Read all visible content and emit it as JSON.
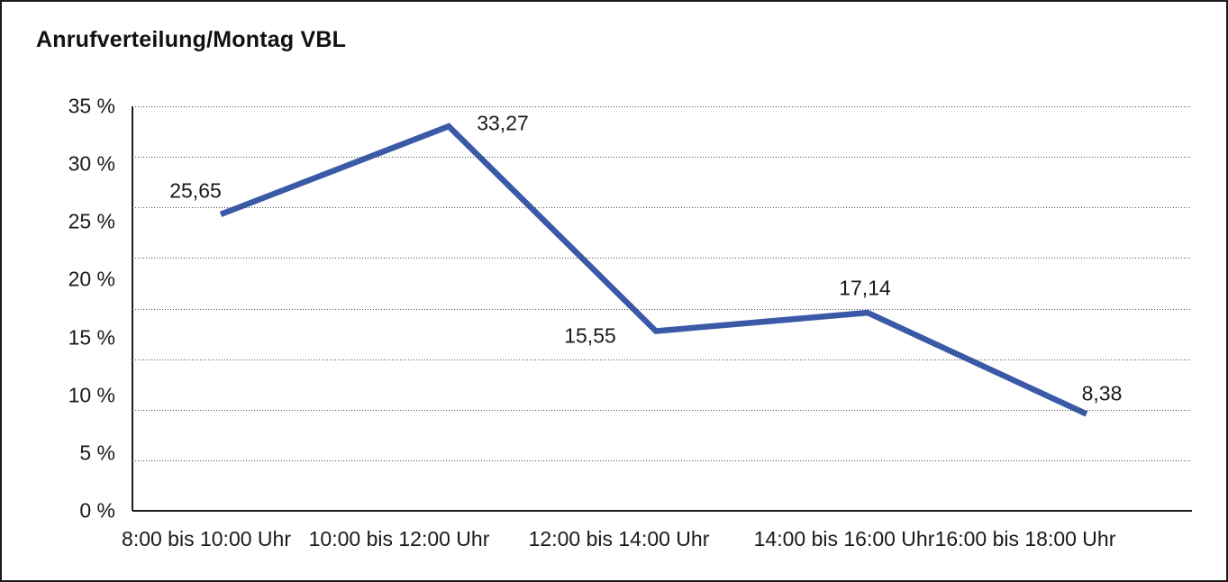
{
  "title": "Anrufverteilung/Montag VBL",
  "colors": {
    "series_line": "#3A59A6",
    "axis": "#1c1c1c",
    "gridline": "#4d4d4d",
    "text": "#1a1a1a",
    "background": "#ffffff"
  },
  "chart_data": {
    "type": "line",
    "title": "Anrufverteilung/Montag VBL",
    "categories": [
      "8:00 bis 10:00 Uhr",
      "10:00 bis 12:00 Uhr",
      "12:00 bis 14:00 Uhr",
      "14:00 bis 16:00 Uhr",
      "16:00 bis 18:00 Uhr"
    ],
    "series": [
      {
        "name": "Anrufverteilung Montag VBL",
        "values": [
          25.65,
          33.27,
          15.55,
          17.14,
          8.38
        ],
        "value_labels": [
          "25,65",
          "33,27",
          "15,55",
          "17,14",
          "8,38"
        ]
      }
    ],
    "xlabel": "",
    "ylabel": "",
    "ylim": [
      0,
      35
    ],
    "y_tick_labels": [
      "35 %",
      "30 %",
      "25 %",
      "20 %",
      "15 %",
      "10 %",
      "5 %",
      "0 %"
    ],
    "grid": "horizontal-dotted",
    "legend_position": "none",
    "line_color": "#3A59A6"
  }
}
